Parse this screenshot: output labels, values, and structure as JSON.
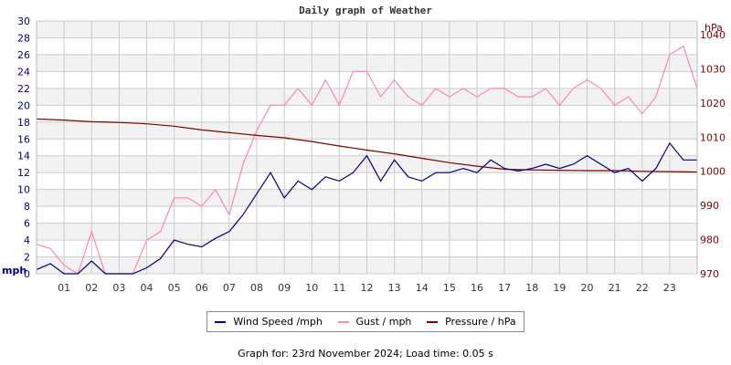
{
  "chart_data": {
    "type": "line",
    "title": "Daily graph of Weather",
    "xlabel": "",
    "ylabel": "mph",
    "y2label": "hPa",
    "x_ticks": [
      "01",
      "02",
      "03",
      "04",
      "05",
      "06",
      "07",
      "08",
      "09",
      "10",
      "11",
      "12",
      "13",
      "14",
      "15",
      "16",
      "17",
      "18",
      "19",
      "20",
      "21",
      "22",
      "23"
    ],
    "y_ticks": [
      0,
      2,
      4,
      6,
      8,
      10,
      12,
      14,
      16,
      18,
      20,
      22,
      24,
      26,
      28,
      30
    ],
    "y2_ticks": [
      970,
      980,
      990,
      1000,
      1010,
      1020,
      1030,
      1040
    ],
    "ylim": [
      0,
      30
    ],
    "y2lim": [
      970,
      1044
    ],
    "xlim_hours": [
      0,
      24
    ],
    "grid": true,
    "legend_position": "bottom",
    "series": [
      {
        "name": "Wind Speed /mph",
        "color": "#000080",
        "axis": "left",
        "x": [
          0,
          0.5,
          1,
          1.5,
          2,
          2.5,
          3,
          3.5,
          4,
          4.5,
          5,
          5.5,
          6,
          6.5,
          7,
          7.5,
          8,
          8.5,
          9,
          9.5,
          10,
          10.5,
          11,
          11.5,
          12,
          12.5,
          13,
          13.5,
          14,
          14.5,
          15,
          15.5,
          16,
          16.5,
          17,
          17.5,
          18,
          18.5,
          19,
          19.5,
          20,
          20.5,
          21,
          21.5,
          22,
          22.5,
          23,
          23.5,
          24
        ],
        "values": [
          0.5,
          1.2,
          0,
          0,
          1.5,
          0,
          0,
          0,
          0.7,
          1.8,
          4,
          3.5,
          3.2,
          4.2,
          5,
          7,
          9.5,
          12,
          9,
          11,
          10,
          11.5,
          11,
          12,
          14,
          11,
          13.5,
          11.5,
          11,
          12,
          12,
          12.5,
          12,
          13.5,
          12.5,
          12.2,
          12.5,
          13,
          12.5,
          13,
          14,
          13,
          12,
          12.5,
          11,
          12.5,
          15.5,
          13.5,
          13.5
        ]
      },
      {
        "name": "Gust / mph",
        "color": "#ff88aa",
        "axis": "left",
        "x": [
          0,
          0.5,
          1,
          1.5,
          2,
          2.5,
          3,
          3.5,
          4,
          4.5,
          5,
          5.5,
          6,
          6.5,
          7,
          7.5,
          8,
          8.5,
          9,
          9.5,
          10,
          10.5,
          11,
          11.5,
          12,
          12.5,
          13,
          13.5,
          14,
          14.5,
          15,
          15.5,
          16,
          16.5,
          17,
          17.5,
          18,
          18.5,
          19,
          19.5,
          20,
          20.5,
          21,
          21.5,
          22,
          22.5,
          23,
          23.5,
          24
        ],
        "values": [
          3.5,
          3,
          1,
          0,
          5,
          0,
          0,
          0,
          4,
          5,
          9,
          9,
          8,
          10,
          7,
          13,
          17,
          20,
          20,
          22,
          20,
          23,
          20,
          24,
          24,
          21,
          23,
          21,
          20,
          22,
          21,
          22,
          21,
          22,
          22,
          21,
          21,
          22,
          20,
          22,
          23,
          22,
          20,
          21,
          19,
          21,
          26,
          27,
          22
        ]
      },
      {
        "name": "Pressure / hPa",
        "color": "#800000",
        "axis": "right",
        "x": [
          0,
          1,
          2,
          3,
          4,
          5,
          6,
          7,
          8,
          9,
          10,
          11,
          12,
          13,
          14,
          15,
          16,
          17,
          18,
          19,
          20,
          21,
          22,
          23,
          24
        ],
        "values": [
          1015.3,
          1015,
          1014.5,
          1014.3,
          1013.9,
          1013.2,
          1012.1,
          1011.3,
          1010.5,
          1009.8,
          1008.7,
          1007.4,
          1006.2,
          1005.1,
          1003.8,
          1002.5,
          1001.5,
          1000.6,
          1000.4,
          1000.3,
          1000.2,
          1000.2,
          1000,
          999.9,
          999.8
        ]
      }
    ]
  },
  "legend": {
    "items": [
      {
        "label": "Wind Speed /mph",
        "color": "#000080"
      },
      {
        "label": "Gust / mph",
        "color": "#ff88aa"
      },
      {
        "label": "Pressure / hPa",
        "color": "#800000"
      }
    ]
  },
  "footer": {
    "text": "Graph for: 23rd November 2024; Load time: 0.05 s"
  },
  "colors": {
    "left_axis": "#000080",
    "right_axis": "#800000",
    "grid": "#cccccc",
    "band": "#f2f2f2"
  }
}
